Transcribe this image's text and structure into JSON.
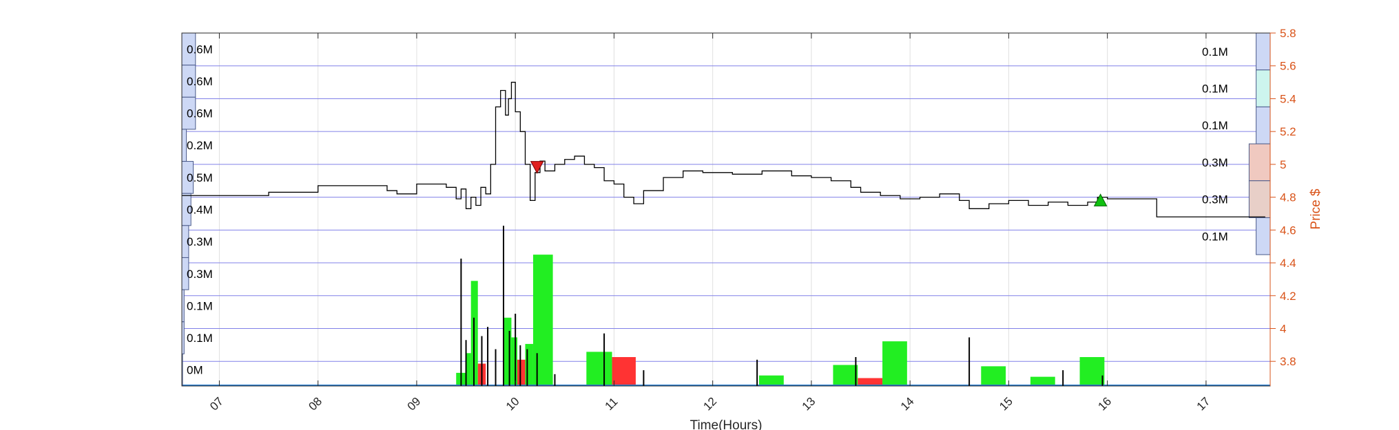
{
  "chart_data": {
    "type": "line",
    "xlabel": "Time(Hours)",
    "ylabel": "Price $",
    "xlim": [
      6.62,
      17.65
    ],
    "ylim": [
      3.65,
      5.8
    ],
    "x_ticks": [
      7,
      8,
      9,
      10,
      11,
      12,
      13,
      14,
      15,
      16,
      17
    ],
    "x_tick_labels": [
      "07",
      "08",
      "09",
      "10",
      "11",
      "12",
      "13",
      "14",
      "15",
      "16",
      "17"
    ],
    "y_ticks": [
      3.8,
      4,
      4.2,
      4.4,
      4.6,
      4.8,
      5,
      5.2,
      5.4,
      5.6,
      5.8
    ],
    "grid": true,
    "price_series": {
      "name": "price",
      "x": [
        6.62,
        7.5,
        7.5,
        8.0,
        8.0,
        8.7,
        8.8,
        9.0,
        9.3,
        9.4,
        9.45,
        9.5,
        9.55,
        9.6,
        9.65,
        9.7,
        9.75,
        9.8,
        9.85,
        9.9,
        9.93,
        9.96,
        10.0,
        10.05,
        10.1,
        10.15,
        10.2,
        10.25,
        10.3,
        10.4,
        10.5,
        10.6,
        10.7,
        10.8,
        10.9,
        11.0,
        11.1,
        11.2,
        11.3,
        11.5,
        11.7,
        11.9,
        12.2,
        12.5,
        12.8,
        13.0,
        13.2,
        13.4,
        13.5,
        13.7,
        13.9,
        14.1,
        14.3,
        14.5,
        14.6,
        14.8,
        15.0,
        15.2,
        15.4,
        15.6,
        15.8,
        15.9,
        16.0,
        16.3,
        16.5,
        16.8,
        17.1,
        17.4,
        17.6
      ],
      "y": [
        4.81,
        4.81,
        4.83,
        4.83,
        4.87,
        4.84,
        4.82,
        4.88,
        4.86,
        4.79,
        4.85,
        4.73,
        4.8,
        4.75,
        4.86,
        4.82,
        5.0,
        5.35,
        5.45,
        5.3,
        5.4,
        5.5,
        5.32,
        5.2,
        5.0,
        4.78,
        4.95,
        5.02,
        4.96,
        5.0,
        5.03,
        5.05,
        5.0,
        4.98,
        4.9,
        4.88,
        4.8,
        4.76,
        4.84,
        4.92,
        4.96,
        4.95,
        4.94,
        4.96,
        4.93,
        4.92,
        4.9,
        4.86,
        4.83,
        4.81,
        4.79,
        4.8,
        4.82,
        4.78,
        4.73,
        4.76,
        4.78,
        4.75,
        4.77,
        4.75,
        4.77,
        4.8,
        4.79,
        4.79,
        4.68,
        4.68,
        4.68,
        4.68,
        4.68
      ]
    },
    "sell_marker": {
      "x": 10.22,
      "y": 4.98,
      "color": "#e02020"
    },
    "buy_marker": {
      "x": 15.93,
      "y": 4.78,
      "color": "#10c010"
    },
    "volume_bars": [
      {
        "x0": 9.4,
        "x1": 9.5,
        "value": 0.1,
        "color": "#22ee22"
      },
      {
        "x0": 9.5,
        "x1": 9.55,
        "value": 0.25,
        "color": "#22ee22"
      },
      {
        "x0": 9.55,
        "x1": 9.62,
        "value": 0.8,
        "color": "#22ee22"
      },
      {
        "x0": 9.62,
        "x1": 9.7,
        "value": 0.17,
        "color": "#ff3333"
      },
      {
        "x0": 9.88,
        "x1": 9.96,
        "value": 0.52,
        "color": "#22ee22"
      },
      {
        "x0": 9.96,
        "x1": 10.02,
        "value": 0.37,
        "color": "#22ee22"
      },
      {
        "x0": 10.02,
        "x1": 10.1,
        "value": 0.2,
        "color": "#ff3333"
      },
      {
        "x0": 10.1,
        "x1": 10.18,
        "value": 0.32,
        "color": "#22ee22"
      },
      {
        "x0": 10.18,
        "x1": 10.38,
        "value": 1.0,
        "color": "#22ee22"
      },
      {
        "x0": 10.72,
        "x1": 10.98,
        "value": 0.26,
        "color": "#22ee22"
      },
      {
        "x0": 10.98,
        "x1": 11.22,
        "value": 0.22,
        "color": "#ff3333"
      },
      {
        "x0": 12.47,
        "x1": 12.72,
        "value": 0.08,
        "color": "#22ee22"
      },
      {
        "x0": 13.22,
        "x1": 13.47,
        "value": 0.16,
        "color": "#22ee22"
      },
      {
        "x0": 13.47,
        "x1": 13.72,
        "value": 0.06,
        "color": "#ff3333"
      },
      {
        "x0": 13.72,
        "x1": 13.97,
        "value": 0.34,
        "color": "#22ee22"
      },
      {
        "x0": 14.72,
        "x1": 14.97,
        "value": 0.15,
        "color": "#22ee22"
      },
      {
        "x0": 15.22,
        "x1": 15.47,
        "value": 0.07,
        "color": "#22ee22"
      },
      {
        "x0": 15.72,
        "x1": 15.97,
        "value": 0.22,
        "color": "#22ee22"
      }
    ],
    "volume_spikes": [
      {
        "x": 9.45,
        "value": 0.97
      },
      {
        "x": 9.5,
        "value": 0.35
      },
      {
        "x": 9.58,
        "value": 0.52
      },
      {
        "x": 9.66,
        "value": 0.38
      },
      {
        "x": 9.72,
        "value": 0.45
      },
      {
        "x": 9.8,
        "value": 0.28
      },
      {
        "x": 9.88,
        "value": 1.22
      },
      {
        "x": 9.94,
        "value": 0.42
      },
      {
        "x": 10.0,
        "value": 0.55
      },
      {
        "x": 10.05,
        "value": 0.31
      },
      {
        "x": 10.12,
        "value": 0.28
      },
      {
        "x": 10.22,
        "value": 0.25
      },
      {
        "x": 10.4,
        "value": 0.09
      },
      {
        "x": 10.9,
        "value": 0.4
      },
      {
        "x": 11.3,
        "value": 0.12
      },
      {
        "x": 12.45,
        "value": 0.2
      },
      {
        "x": 13.45,
        "value": 0.22
      },
      {
        "x": 14.6,
        "value": 0.37
      },
      {
        "x": 15.55,
        "value": 0.12
      },
      {
        "x": 15.95,
        "value": 0.08
      }
    ],
    "volume_profile_left": {
      "labels": [
        "0.6M",
        "0.6M",
        "0.6M",
        "0.2M",
        "0.5M",
        "0.4M",
        "0.3M",
        "0.3M",
        "0.1M",
        "0.1M",
        "0M"
      ],
      "fractions": [
        0.9,
        0.9,
        0.9,
        0.3,
        0.75,
        0.6,
        0.45,
        0.45,
        0.15,
        0.15,
        0.0
      ]
    },
    "volume_profile_right": {
      "labels": [
        "0.1M",
        "0.1M",
        "0.1M",
        "0.3M",
        "0.3M",
        "0.1M"
      ],
      "fractions": [
        0.6,
        0.6,
        0.6,
        0.9,
        0.9,
        0.6
      ],
      "colors": [
        "#cdd8f5",
        "#cdf5ee",
        "#cdd8f5",
        "#f0c9c0",
        "#e8cfc8",
        "#cdd8f5"
      ]
    }
  }
}
